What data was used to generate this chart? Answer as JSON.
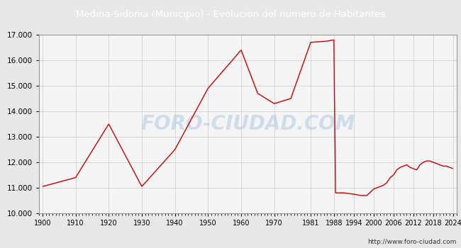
{
  "title": "Medina-Sidonia (Municipio) - Evolucion del numero de Habitantes",
  "title_bgcolor": "#4f86c6",
  "title_color": "white",
  "ylim": [
    10000,
    17000
  ],
  "yticks": [
    10000,
    11000,
    12000,
    13000,
    14000,
    15000,
    16000,
    17000
  ],
  "xticks": [
    1900,
    1910,
    1920,
    1930,
    1940,
    1950,
    1960,
    1970,
    1981,
    1988,
    1994,
    2000,
    2006,
    2012,
    2018,
    2024
  ],
  "watermark": "FORO-CIUDAD.COM",
  "footer": "http://www.foro-ciudad.com",
  "bg_color": "#e8e8e8",
  "plot_bg_color": "#f5f5f5",
  "grid_color": "#cccccc",
  "line_color": "#cc0000",
  "xlim_min": 1899,
  "xlim_max": 2025,
  "years": [
    1900,
    1910,
    1920,
    1930,
    1940,
    1950,
    1960,
    1965,
    1970,
    1975,
    1981,
    1986,
    1988,
    1988.5,
    1991,
    1994,
    1996,
    1998,
    2000,
    2001,
    2002,
    2003,
    2004,
    2005,
    2006,
    2007,
    2008,
    2009,
    2010,
    2011,
    2012,
    2013,
    2014,
    2015,
    2016,
    2017,
    2018,
    2019,
    2020,
    2021,
    2022,
    2023,
    2024
  ],
  "population": [
    11050,
    11400,
    13500,
    11050,
    12500,
    14900,
    16400,
    14700,
    14300,
    14500,
    16700,
    16750,
    16800,
    10800,
    10800,
    10750,
    10700,
    10700,
    10950,
    11000,
    11050,
    11100,
    11200,
    11400,
    11500,
    11700,
    11800,
    11850,
    11900,
    11800,
    11750,
    11700,
    11900,
    12000,
    12050,
    12050,
    12000,
    11950,
    11900,
    11850,
    11850,
    11800,
    11750
  ]
}
